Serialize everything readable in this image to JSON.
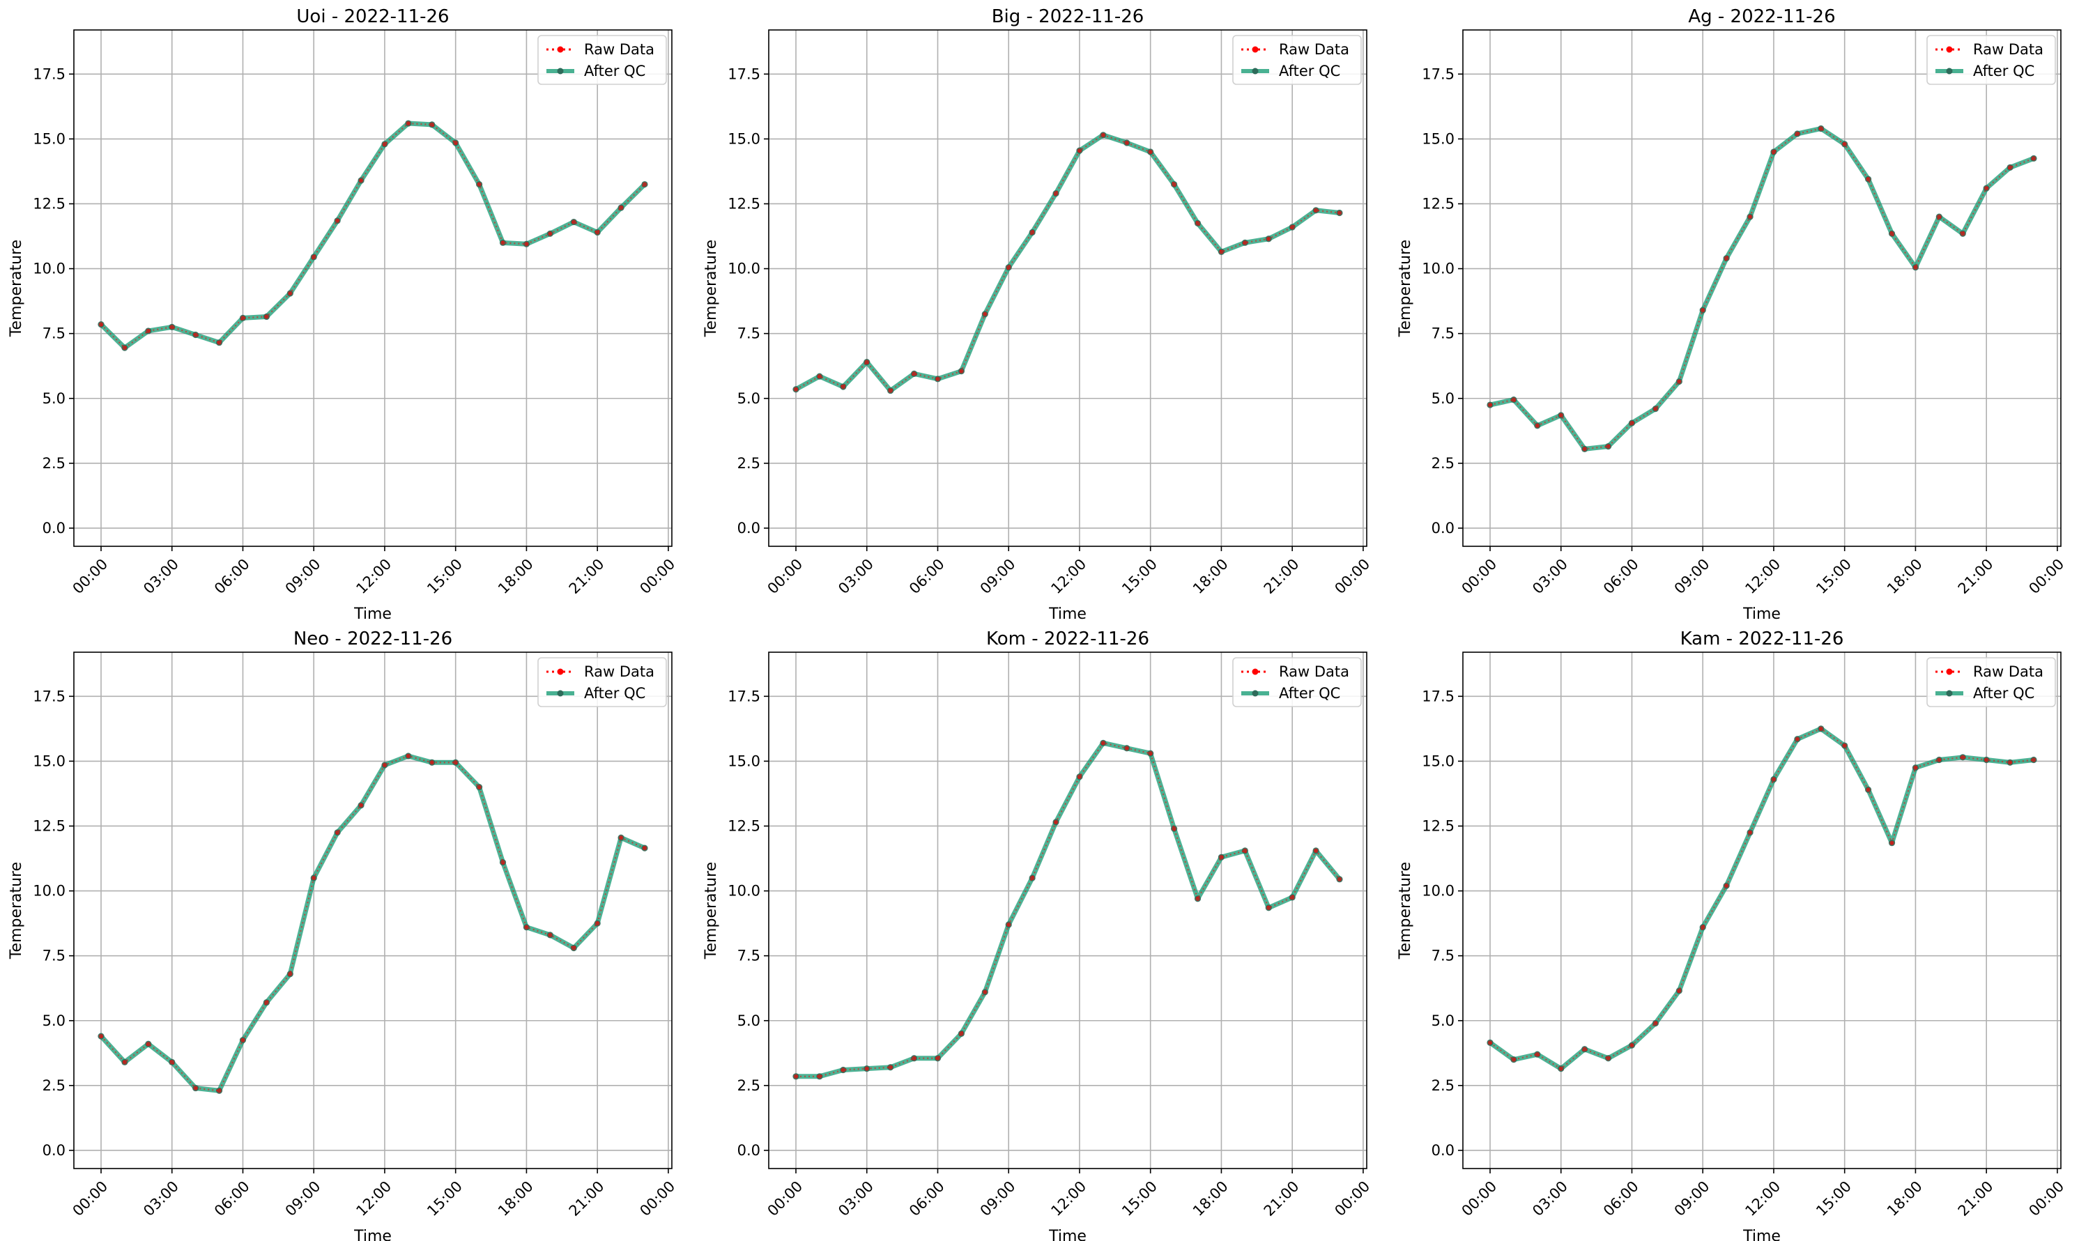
{
  "figure": {
    "colors": {
      "raw": "#ff0000",
      "qc_line": "#1b9e77",
      "qc_marker": "#2e6b5a",
      "grid": "#b0b0b0",
      "axis": "#000000"
    }
  },
  "chart_data": [
    {
      "type": "line",
      "title": "Uoi - 2022-11-26",
      "xlabel": "Time",
      "ylabel": "Temperature",
      "x_range_hours": [
        -1.15,
        24.15
      ],
      "ylim": [
        -0.7,
        19.2
      ],
      "x_ticks": [
        "00:00",
        "03:00",
        "06:00",
        "09:00",
        "12:00",
        "15:00",
        "18:00",
        "21:00",
        "00:00"
      ],
      "y_ticks": [
        "0.0",
        "2.5",
        "5.0",
        "7.5",
        "10.0",
        "12.5",
        "15.0",
        "17.5"
      ],
      "grid": true,
      "legend": "top-right",
      "x": [
        "00:00",
        "01:00",
        "02:00",
        "03:00",
        "04:00",
        "05:00",
        "06:00",
        "07:00",
        "08:00",
        "09:00",
        "10:00",
        "11:00",
        "12:00",
        "13:00",
        "14:00",
        "15:00",
        "16:00",
        "17:00",
        "18:00",
        "19:00",
        "20:00",
        "21:00",
        "22:00",
        "23:00"
      ],
      "series": [
        {
          "name": "Raw Data",
          "values": [
            7.85,
            6.95,
            7.6,
            7.75,
            7.45,
            7.15,
            8.1,
            8.15,
            9.05,
            10.45,
            11.85,
            13.4,
            14.8,
            15.6,
            15.55,
            14.85,
            13.25,
            11.0,
            10.95,
            11.35,
            11.8,
            11.4,
            12.35,
            13.25
          ]
        },
        {
          "name": "After QC",
          "values": [
            7.85,
            6.95,
            7.6,
            7.75,
            7.45,
            7.15,
            8.1,
            8.15,
            9.05,
            10.45,
            11.85,
            13.4,
            14.8,
            15.6,
            15.55,
            14.85,
            13.25,
            11.0,
            10.95,
            11.35,
            11.8,
            11.4,
            12.35,
            13.25
          ]
        }
      ]
    },
    {
      "type": "line",
      "title": "Big - 2022-11-26",
      "xlabel": "Time",
      "ylabel": "Temperature",
      "x_range_hours": [
        -1.15,
        24.15
      ],
      "ylim": [
        -0.7,
        19.2
      ],
      "x_ticks": [
        "00:00",
        "03:00",
        "06:00",
        "09:00",
        "12:00",
        "15:00",
        "18:00",
        "21:00",
        "00:00"
      ],
      "y_ticks": [
        "0.0",
        "2.5",
        "5.0",
        "7.5",
        "10.0",
        "12.5",
        "15.0",
        "17.5"
      ],
      "grid": true,
      "legend": "top-right",
      "x": [
        "00:00",
        "01:00",
        "02:00",
        "03:00",
        "04:00",
        "05:00",
        "06:00",
        "07:00",
        "08:00",
        "09:00",
        "10:00",
        "11:00",
        "12:00",
        "13:00",
        "14:00",
        "15:00",
        "16:00",
        "17:00",
        "18:00",
        "19:00",
        "20:00",
        "21:00",
        "22:00",
        "23:00"
      ],
      "series": [
        {
          "name": "Raw Data",
          "values": [
            5.35,
            5.85,
            5.45,
            6.4,
            5.3,
            5.95,
            5.75,
            6.05,
            8.25,
            10.05,
            11.4,
            12.9,
            14.55,
            15.15,
            14.85,
            14.5,
            13.25,
            11.75,
            10.65,
            11.0,
            11.15,
            11.6,
            12.25,
            12.15
          ]
        },
        {
          "name": "After QC",
          "values": [
            5.35,
            5.85,
            5.45,
            6.4,
            5.3,
            5.95,
            5.75,
            6.05,
            8.25,
            10.05,
            11.4,
            12.9,
            14.55,
            15.15,
            14.85,
            14.5,
            13.25,
            11.75,
            10.65,
            11.0,
            11.15,
            11.6,
            12.25,
            12.15
          ]
        }
      ]
    },
    {
      "type": "line",
      "title": "Ag - 2022-11-26",
      "xlabel": "Time",
      "ylabel": "Temperature",
      "x_range_hours": [
        -1.15,
        24.15
      ],
      "ylim": [
        -0.7,
        19.2
      ],
      "x_ticks": [
        "00:00",
        "03:00",
        "06:00",
        "09:00",
        "12:00",
        "15:00",
        "18:00",
        "21:00",
        "00:00"
      ],
      "y_ticks": [
        "0.0",
        "2.5",
        "5.0",
        "7.5",
        "10.0",
        "12.5",
        "15.0",
        "17.5"
      ],
      "grid": true,
      "legend": "top-right",
      "x": [
        "00:00",
        "01:00",
        "02:00",
        "03:00",
        "04:00",
        "05:00",
        "06:00",
        "07:00",
        "08:00",
        "09:00",
        "10:00",
        "11:00",
        "12:00",
        "13:00",
        "14:00",
        "15:00",
        "16:00",
        "17:00",
        "18:00",
        "19:00",
        "20:00",
        "21:00",
        "22:00",
        "23:00"
      ],
      "series": [
        {
          "name": "Raw Data",
          "values": [
            4.75,
            4.95,
            3.95,
            4.35,
            3.05,
            3.15,
            4.05,
            4.6,
            5.65,
            8.4,
            10.4,
            12.0,
            14.5,
            15.2,
            15.4,
            14.8,
            13.45,
            11.35,
            10.05,
            12.0,
            11.35,
            13.1,
            13.9,
            14.25
          ]
        },
        {
          "name": "After QC",
          "values": [
            4.75,
            4.95,
            3.95,
            4.35,
            3.05,
            3.15,
            4.05,
            4.6,
            5.65,
            8.4,
            10.4,
            12.0,
            14.5,
            15.2,
            15.4,
            14.8,
            13.45,
            11.35,
            10.05,
            12.0,
            11.35,
            13.1,
            13.9,
            14.25
          ]
        }
      ]
    },
    {
      "type": "line",
      "title": "Neo - 2022-11-26",
      "xlabel": "Time",
      "ylabel": "Temperature",
      "x_range_hours": [
        -1.15,
        24.15
      ],
      "ylim": [
        -0.7,
        19.2
      ],
      "x_ticks": [
        "00:00",
        "03:00",
        "06:00",
        "09:00",
        "12:00",
        "15:00",
        "18:00",
        "21:00",
        "00:00"
      ],
      "y_ticks": [
        "0.0",
        "2.5",
        "5.0",
        "7.5",
        "10.0",
        "12.5",
        "15.0",
        "17.5"
      ],
      "grid": true,
      "legend": "top-right",
      "x": [
        "00:00",
        "01:00",
        "02:00",
        "03:00",
        "04:00",
        "05:00",
        "06:00",
        "07:00",
        "08:00",
        "09:00",
        "10:00",
        "11:00",
        "12:00",
        "13:00",
        "14:00",
        "15:00",
        "16:00",
        "17:00",
        "18:00",
        "19:00",
        "20:00",
        "21:00",
        "22:00",
        "23:00"
      ],
      "series": [
        {
          "name": "Raw Data",
          "values": [
            4.4,
            3.4,
            4.1,
            3.4,
            2.4,
            2.3,
            4.25,
            5.7,
            6.8,
            10.5,
            12.25,
            13.3,
            14.85,
            15.2,
            14.95,
            14.95,
            14.0,
            11.1,
            8.6,
            8.3,
            7.8,
            8.75,
            12.05,
            11.65
          ]
        },
        {
          "name": "After QC",
          "values": [
            4.4,
            3.4,
            4.1,
            3.4,
            2.4,
            2.3,
            4.25,
            5.7,
            6.8,
            10.5,
            12.25,
            13.3,
            14.85,
            15.2,
            14.95,
            14.95,
            14.0,
            11.1,
            8.6,
            8.3,
            7.8,
            8.75,
            12.05,
            11.65
          ]
        }
      ]
    },
    {
      "type": "line",
      "title": "Kom - 2022-11-26",
      "xlabel": "Time",
      "ylabel": "Temperature",
      "x_range_hours": [
        -1.15,
        24.15
      ],
      "ylim": [
        -0.7,
        19.2
      ],
      "x_ticks": [
        "00:00",
        "03:00",
        "06:00",
        "09:00",
        "12:00",
        "15:00",
        "18:00",
        "21:00",
        "00:00"
      ],
      "y_ticks": [
        "0.0",
        "2.5",
        "5.0",
        "7.5",
        "10.0",
        "12.5",
        "15.0",
        "17.5"
      ],
      "grid": true,
      "legend": "top-right",
      "x": [
        "00:00",
        "01:00",
        "02:00",
        "03:00",
        "04:00",
        "05:00",
        "06:00",
        "07:00",
        "08:00",
        "09:00",
        "10:00",
        "11:00",
        "12:00",
        "13:00",
        "14:00",
        "15:00",
        "16:00",
        "17:00",
        "18:00",
        "19:00",
        "20:00",
        "21:00",
        "22:00",
        "23:00"
      ],
      "series": [
        {
          "name": "Raw Data",
          "values": [
            2.85,
            2.85,
            3.1,
            3.15,
            3.2,
            3.55,
            3.55,
            4.5,
            6.1,
            8.7,
            10.5,
            12.65,
            14.4,
            15.7,
            15.5,
            15.3,
            12.4,
            9.7,
            11.3,
            11.55,
            9.35,
            9.75,
            11.55,
            10.45
          ]
        },
        {
          "name": "After QC",
          "values": [
            2.85,
            2.85,
            3.1,
            3.15,
            3.2,
            3.55,
            3.55,
            4.5,
            6.1,
            8.7,
            10.5,
            12.65,
            14.4,
            15.7,
            15.5,
            15.3,
            12.4,
            9.7,
            11.3,
            11.55,
            9.35,
            9.75,
            11.55,
            10.45
          ]
        }
      ]
    },
    {
      "type": "line",
      "title": "Kam - 2022-11-26",
      "xlabel": "Time",
      "ylabel": "Temperature",
      "x_range_hours": [
        -1.15,
        24.15
      ],
      "ylim": [
        -0.7,
        19.2
      ],
      "x_ticks": [
        "00:00",
        "03:00",
        "06:00",
        "09:00",
        "12:00",
        "15:00",
        "18:00",
        "21:00",
        "00:00"
      ],
      "y_ticks": [
        "0.0",
        "2.5",
        "5.0",
        "7.5",
        "10.0",
        "12.5",
        "15.0",
        "17.5"
      ],
      "grid": true,
      "legend": "top-right",
      "x": [
        "00:00",
        "01:00",
        "02:00",
        "03:00",
        "04:00",
        "05:00",
        "06:00",
        "07:00",
        "08:00",
        "09:00",
        "10:00",
        "11:00",
        "12:00",
        "13:00",
        "14:00",
        "15:00",
        "16:00",
        "17:00",
        "18:00",
        "19:00",
        "20:00",
        "21:00",
        "22:00",
        "23:00"
      ],
      "series": [
        {
          "name": "Raw Data",
          "values": [
            4.15,
            3.5,
            3.7,
            3.15,
            3.9,
            3.55,
            4.05,
            4.9,
            6.15,
            8.6,
            10.2,
            12.25,
            14.3,
            15.85,
            16.25,
            15.6,
            13.9,
            11.85,
            14.75,
            15.05,
            15.15,
            15.05,
            14.95,
            15.05
          ]
        },
        {
          "name": "After QC",
          "values": [
            4.15,
            3.5,
            3.7,
            3.15,
            3.9,
            3.55,
            4.05,
            4.9,
            6.15,
            8.6,
            10.2,
            12.25,
            14.3,
            15.85,
            16.25,
            15.6,
            13.9,
            11.85,
            14.75,
            15.05,
            15.15,
            15.05,
            14.95,
            15.05
          ]
        }
      ]
    }
  ]
}
